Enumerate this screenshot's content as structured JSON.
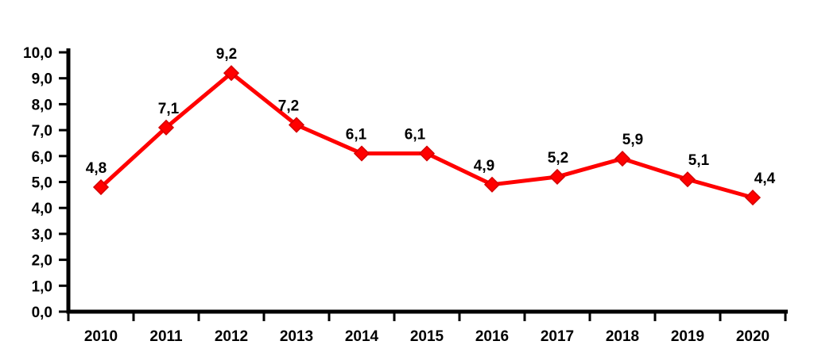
{
  "chart": {
    "background": "#ffffff"
  },
  "chart_data": {
    "type": "line",
    "title": "",
    "xlabel": "",
    "ylabel": "",
    "categories": [
      "2010",
      "2011",
      "2012",
      "2013",
      "2014",
      "2015",
      "2016",
      "2017",
      "2018",
      "2019",
      "2020"
    ],
    "values": [
      4.8,
      7.1,
      9.2,
      7.2,
      6.1,
      6.1,
      4.9,
      5.2,
      5.9,
      5.1,
      4.4
    ],
    "point_labels": [
      "4,8",
      "7,1",
      "9,2",
      "7,2",
      "6,1",
      "6,1",
      "4,9",
      "5,2",
      "5,9",
      "5,1",
      "4,4"
    ],
    "y_tick_labels": [
      "0,0",
      "1,0",
      "2,0",
      "3,0",
      "4,0",
      "5,0",
      "6,0",
      "7,0",
      "8,0",
      "9,0",
      "10,0"
    ],
    "ylim": [
      0,
      10
    ],
    "y_tick_step": 1.0,
    "decimal_separator": ",",
    "grid": false,
    "legend": "none",
    "line_color": "#ff0000",
    "marker": "diamond",
    "marker_color": "#ff0000",
    "marker_edge_color": "#d40000",
    "axis_color": "#000000",
    "label_color": "#000000",
    "label_dx": [
      -6,
      3,
      -6,
      -10,
      -7,
      -15,
      -10,
      1,
      13,
      14,
      15
    ]
  }
}
